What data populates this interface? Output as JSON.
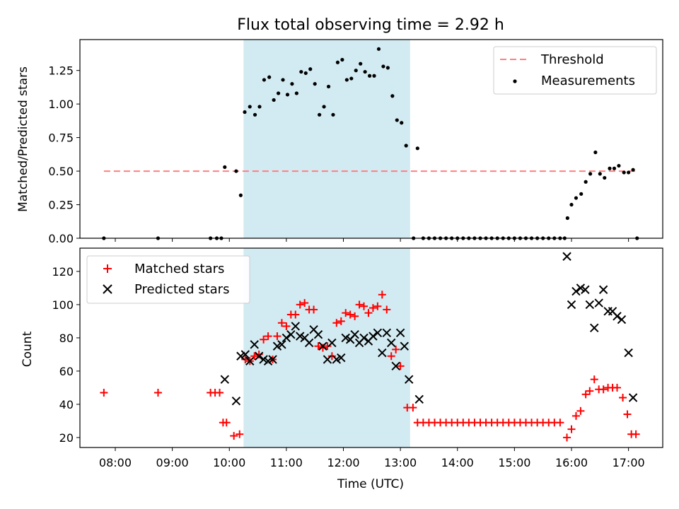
{
  "chart_data": [
    {
      "type": "scatter",
      "title": "Flux total observing time = 2.92 h",
      "xlabel": "",
      "ylabel": "Matched/Predicted stars",
      "xlim_hours": [
        7.38,
        17.6
      ],
      "ylim": [
        0,
        1.48
      ],
      "yticks": [
        0,
        0.25,
        0.5,
        0.75,
        1.0,
        1.25
      ],
      "ytick_labels": [
        "0.00",
        "0.25",
        "0.50",
        "0.75",
        "1.00",
        "1.25"
      ],
      "shaded_interval_hours": [
        10.25,
        13.17
      ],
      "legend_position": "top-right",
      "threshold": {
        "name": "Threshold",
        "value": 0.5,
        "x_range_hours": [
          7.8,
          17.12
        ],
        "color": "#ff7f7f"
      },
      "measurements": {
        "name": "Measurements",
        "color": "#000000",
        "points": [
          [
            7.8,
            0
          ],
          [
            8.75,
            0
          ],
          [
            9.67,
            0
          ],
          [
            9.78,
            0
          ],
          [
            9.86,
            0
          ],
          [
            9.92,
            0.53
          ],
          [
            10.12,
            0.5
          ],
          [
            10.2,
            0.32
          ],
          [
            10.27,
            0.94
          ],
          [
            10.36,
            0.98
          ],
          [
            10.45,
            0.92
          ],
          [
            10.53,
            0.98
          ],
          [
            10.61,
            1.18
          ],
          [
            10.7,
            1.2
          ],
          [
            10.78,
            1.03
          ],
          [
            10.86,
            1.08
          ],
          [
            10.94,
            1.18
          ],
          [
            11.02,
            1.07
          ],
          [
            11.1,
            1.15
          ],
          [
            11.18,
            1.08
          ],
          [
            11.26,
            1.24
          ],
          [
            11.34,
            1.23
          ],
          [
            11.42,
            1.26
          ],
          [
            11.5,
            1.15
          ],
          [
            11.58,
            0.92
          ],
          [
            11.66,
            0.98
          ],
          [
            11.74,
            1.13
          ],
          [
            11.82,
            0.92
          ],
          [
            11.9,
            1.31
          ],
          [
            11.98,
            1.33
          ],
          [
            12.06,
            1.18
          ],
          [
            12.14,
            1.19
          ],
          [
            12.22,
            1.25
          ],
          [
            12.3,
            1.3
          ],
          [
            12.38,
            1.24
          ],
          [
            12.46,
            1.21
          ],
          [
            12.54,
            1.21
          ],
          [
            12.62,
            1.41
          ],
          [
            12.7,
            1.28
          ],
          [
            12.78,
            1.27
          ],
          [
            12.86,
            1.06
          ],
          [
            12.94,
            0.88
          ],
          [
            13.02,
            0.86
          ],
          [
            13.1,
            0.69
          ],
          [
            13.3,
            0.67
          ],
          [
            13.23,
            0
          ],
          [
            13.4,
            0
          ],
          [
            13.5,
            0
          ],
          [
            13.6,
            0
          ],
          [
            13.7,
            0
          ],
          [
            13.8,
            0
          ],
          [
            13.9,
            0
          ],
          [
            14.0,
            0
          ],
          [
            14.1,
            0
          ],
          [
            14.2,
            0
          ],
          [
            14.3,
            0
          ],
          [
            14.4,
            0
          ],
          [
            14.5,
            0
          ],
          [
            14.6,
            0
          ],
          [
            14.7,
            0
          ],
          [
            14.8,
            0
          ],
          [
            14.9,
            0
          ],
          [
            15.0,
            0
          ],
          [
            15.1,
            0
          ],
          [
            15.2,
            0
          ],
          [
            15.3,
            0
          ],
          [
            15.4,
            0
          ],
          [
            15.5,
            0
          ],
          [
            15.6,
            0
          ],
          [
            15.7,
            0
          ],
          [
            15.8,
            0
          ],
          [
            15.88,
            0
          ],
          [
            15.93,
            0.15
          ],
          [
            16.0,
            0.25
          ],
          [
            16.08,
            0.3
          ],
          [
            16.17,
            0.33
          ],
          [
            16.25,
            0.42
          ],
          [
            16.33,
            0.48
          ],
          [
            16.42,
            0.64
          ],
          [
            16.5,
            0.48
          ],
          [
            16.58,
            0.45
          ],
          [
            16.67,
            0.52
          ],
          [
            16.75,
            0.52
          ],
          [
            16.83,
            0.54
          ],
          [
            16.92,
            0.49
          ],
          [
            17.0,
            0.49
          ],
          [
            17.08,
            0.51
          ],
          [
            17.15,
            0
          ]
        ]
      }
    },
    {
      "type": "scatter",
      "title": "",
      "xlabel": "Time (UTC)",
      "ylabel": "Count",
      "xlim_hours": [
        7.38,
        17.6
      ],
      "ylim": [
        14,
        134
      ],
      "yticks": [
        20,
        40,
        60,
        80,
        100,
        120
      ],
      "ytick_labels": [
        "20",
        "40",
        "60",
        "80",
        "100",
        "120"
      ],
      "xticks_hours": [
        8,
        9,
        10,
        11,
        12,
        13,
        14,
        15,
        16,
        17
      ],
      "xtick_labels": [
        "08:00",
        "09:00",
        "10:00",
        "11:00",
        "12:00",
        "13:00",
        "14:00",
        "15:00",
        "16:00",
        "17:00"
      ],
      "shaded_interval_hours": [
        10.25,
        13.17
      ],
      "legend_position": "top-left",
      "series": [
        {
          "name": "Matched stars",
          "marker": "+",
          "color": "#ff0000",
          "points": [
            [
              7.8,
              47
            ],
            [
              8.75,
              47
            ],
            [
              9.67,
              47
            ],
            [
              9.75,
              47
            ],
            [
              9.83,
              47
            ],
            [
              9.89,
              29
            ],
            [
              9.95,
              29
            ],
            [
              10.08,
              21
            ],
            [
              10.18,
              22
            ],
            [
              10.28,
              67
            ],
            [
              10.36,
              66
            ],
            [
              10.44,
              69
            ],
            [
              10.52,
              70
            ],
            [
              10.6,
              79
            ],
            [
              10.68,
              81
            ],
            [
              10.76,
              67
            ],
            [
              10.84,
              81
            ],
            [
              10.92,
              89
            ],
            [
              11.0,
              87
            ],
            [
              11.08,
              94
            ],
            [
              11.16,
              94
            ],
            [
              11.24,
              100
            ],
            [
              11.32,
              101
            ],
            [
              11.4,
              97
            ],
            [
              11.48,
              97
            ],
            [
              11.56,
              75
            ],
            [
              11.64,
              74
            ],
            [
              11.72,
              75
            ],
            [
              11.8,
              69
            ],
            [
              11.88,
              89
            ],
            [
              11.96,
              90
            ],
            [
              12.04,
              95
            ],
            [
              12.12,
              94
            ],
            [
              12.2,
              93
            ],
            [
              12.28,
              100
            ],
            [
              12.36,
              99
            ],
            [
              12.44,
              95
            ],
            [
              12.52,
              98
            ],
            [
              12.6,
              99
            ],
            [
              12.68,
              106
            ],
            [
              12.76,
              97
            ],
            [
              12.84,
              69
            ],
            [
              12.92,
              73
            ],
            [
              13.0,
              63
            ],
            [
              13.12,
              38
            ],
            [
              13.22,
              38
            ],
            [
              13.3,
              29
            ],
            [
              13.4,
              29
            ],
            [
              13.5,
              29
            ],
            [
              13.6,
              29
            ],
            [
              13.7,
              29
            ],
            [
              13.8,
              29
            ],
            [
              13.9,
              29
            ],
            [
              14.0,
              29
            ],
            [
              14.1,
              29
            ],
            [
              14.2,
              29
            ],
            [
              14.3,
              29
            ],
            [
              14.4,
              29
            ],
            [
              14.5,
              29
            ],
            [
              14.6,
              29
            ],
            [
              14.7,
              29
            ],
            [
              14.8,
              29
            ],
            [
              14.9,
              29
            ],
            [
              15.0,
              29
            ],
            [
              15.1,
              29
            ],
            [
              15.2,
              29
            ],
            [
              15.3,
              29
            ],
            [
              15.4,
              29
            ],
            [
              15.5,
              29
            ],
            [
              15.6,
              29
            ],
            [
              15.7,
              29
            ],
            [
              15.8,
              29
            ],
            [
              15.92,
              20
            ],
            [
              16.0,
              25
            ],
            [
              16.08,
              33
            ],
            [
              16.16,
              36
            ],
            [
              16.25,
              46
            ],
            [
              16.32,
              48
            ],
            [
              16.4,
              55
            ],
            [
              16.48,
              49
            ],
            [
              16.56,
              49
            ],
            [
              16.64,
              50
            ],
            [
              16.72,
              50
            ],
            [
              16.8,
              50
            ],
            [
              16.9,
              44
            ],
            [
              16.98,
              34
            ],
            [
              17.05,
              22
            ],
            [
              17.13,
              22
            ]
          ]
        },
        {
          "name": "Predicted stars",
          "marker": "x",
          "color": "#000000",
          "points": [
            [
              9.92,
              55
            ],
            [
              10.12,
              42
            ],
            [
              10.2,
              69
            ],
            [
              10.28,
              70
            ],
            [
              10.36,
              66
            ],
            [
              10.44,
              76
            ],
            [
              10.52,
              69
            ],
            [
              10.6,
              67
            ],
            [
              10.68,
              66
            ],
            [
              10.76,
              67
            ],
            [
              10.84,
              75
            ],
            [
              10.92,
              76
            ],
            [
              11.0,
              80
            ],
            [
              11.08,
              82
            ],
            [
              11.16,
              87
            ],
            [
              11.24,
              81
            ],
            [
              11.32,
              80
            ],
            [
              11.4,
              77
            ],
            [
              11.48,
              85
            ],
            [
              11.56,
              82
            ],
            [
              11.64,
              75
            ],
            [
              11.72,
              67
            ],
            [
              11.8,
              77
            ],
            [
              11.88,
              67
            ],
            [
              11.96,
              68
            ],
            [
              12.04,
              80
            ],
            [
              12.12,
              79
            ],
            [
              12.2,
              82
            ],
            [
              12.28,
              77
            ],
            [
              12.36,
              80
            ],
            [
              12.44,
              78
            ],
            [
              12.52,
              81
            ],
            [
              12.6,
              83
            ],
            [
              12.68,
              71
            ],
            [
              12.76,
              83
            ],
            [
              12.84,
              77
            ],
            [
              12.92,
              63
            ],
            [
              13.0,
              83
            ],
            [
              13.07,
              75
            ],
            [
              13.15,
              55
            ],
            [
              13.33,
              43
            ],
            [
              15.92,
              129
            ],
            [
              16.0,
              100
            ],
            [
              16.08,
              108
            ],
            [
              16.16,
              110
            ],
            [
              16.24,
              109
            ],
            [
              16.32,
              100
            ],
            [
              16.4,
              86
            ],
            [
              16.48,
              101
            ],
            [
              16.56,
              109
            ],
            [
              16.64,
              96
            ],
            [
              16.72,
              96
            ],
            [
              16.8,
              93
            ],
            [
              16.88,
              91
            ],
            [
              17.0,
              71
            ],
            [
              17.08,
              44
            ]
          ]
        }
      ]
    }
  ],
  "colors": {
    "shade": "#add8e6",
    "threshold": "#ff7f7f",
    "matched": "#ff0000",
    "predicted": "#000000"
  }
}
